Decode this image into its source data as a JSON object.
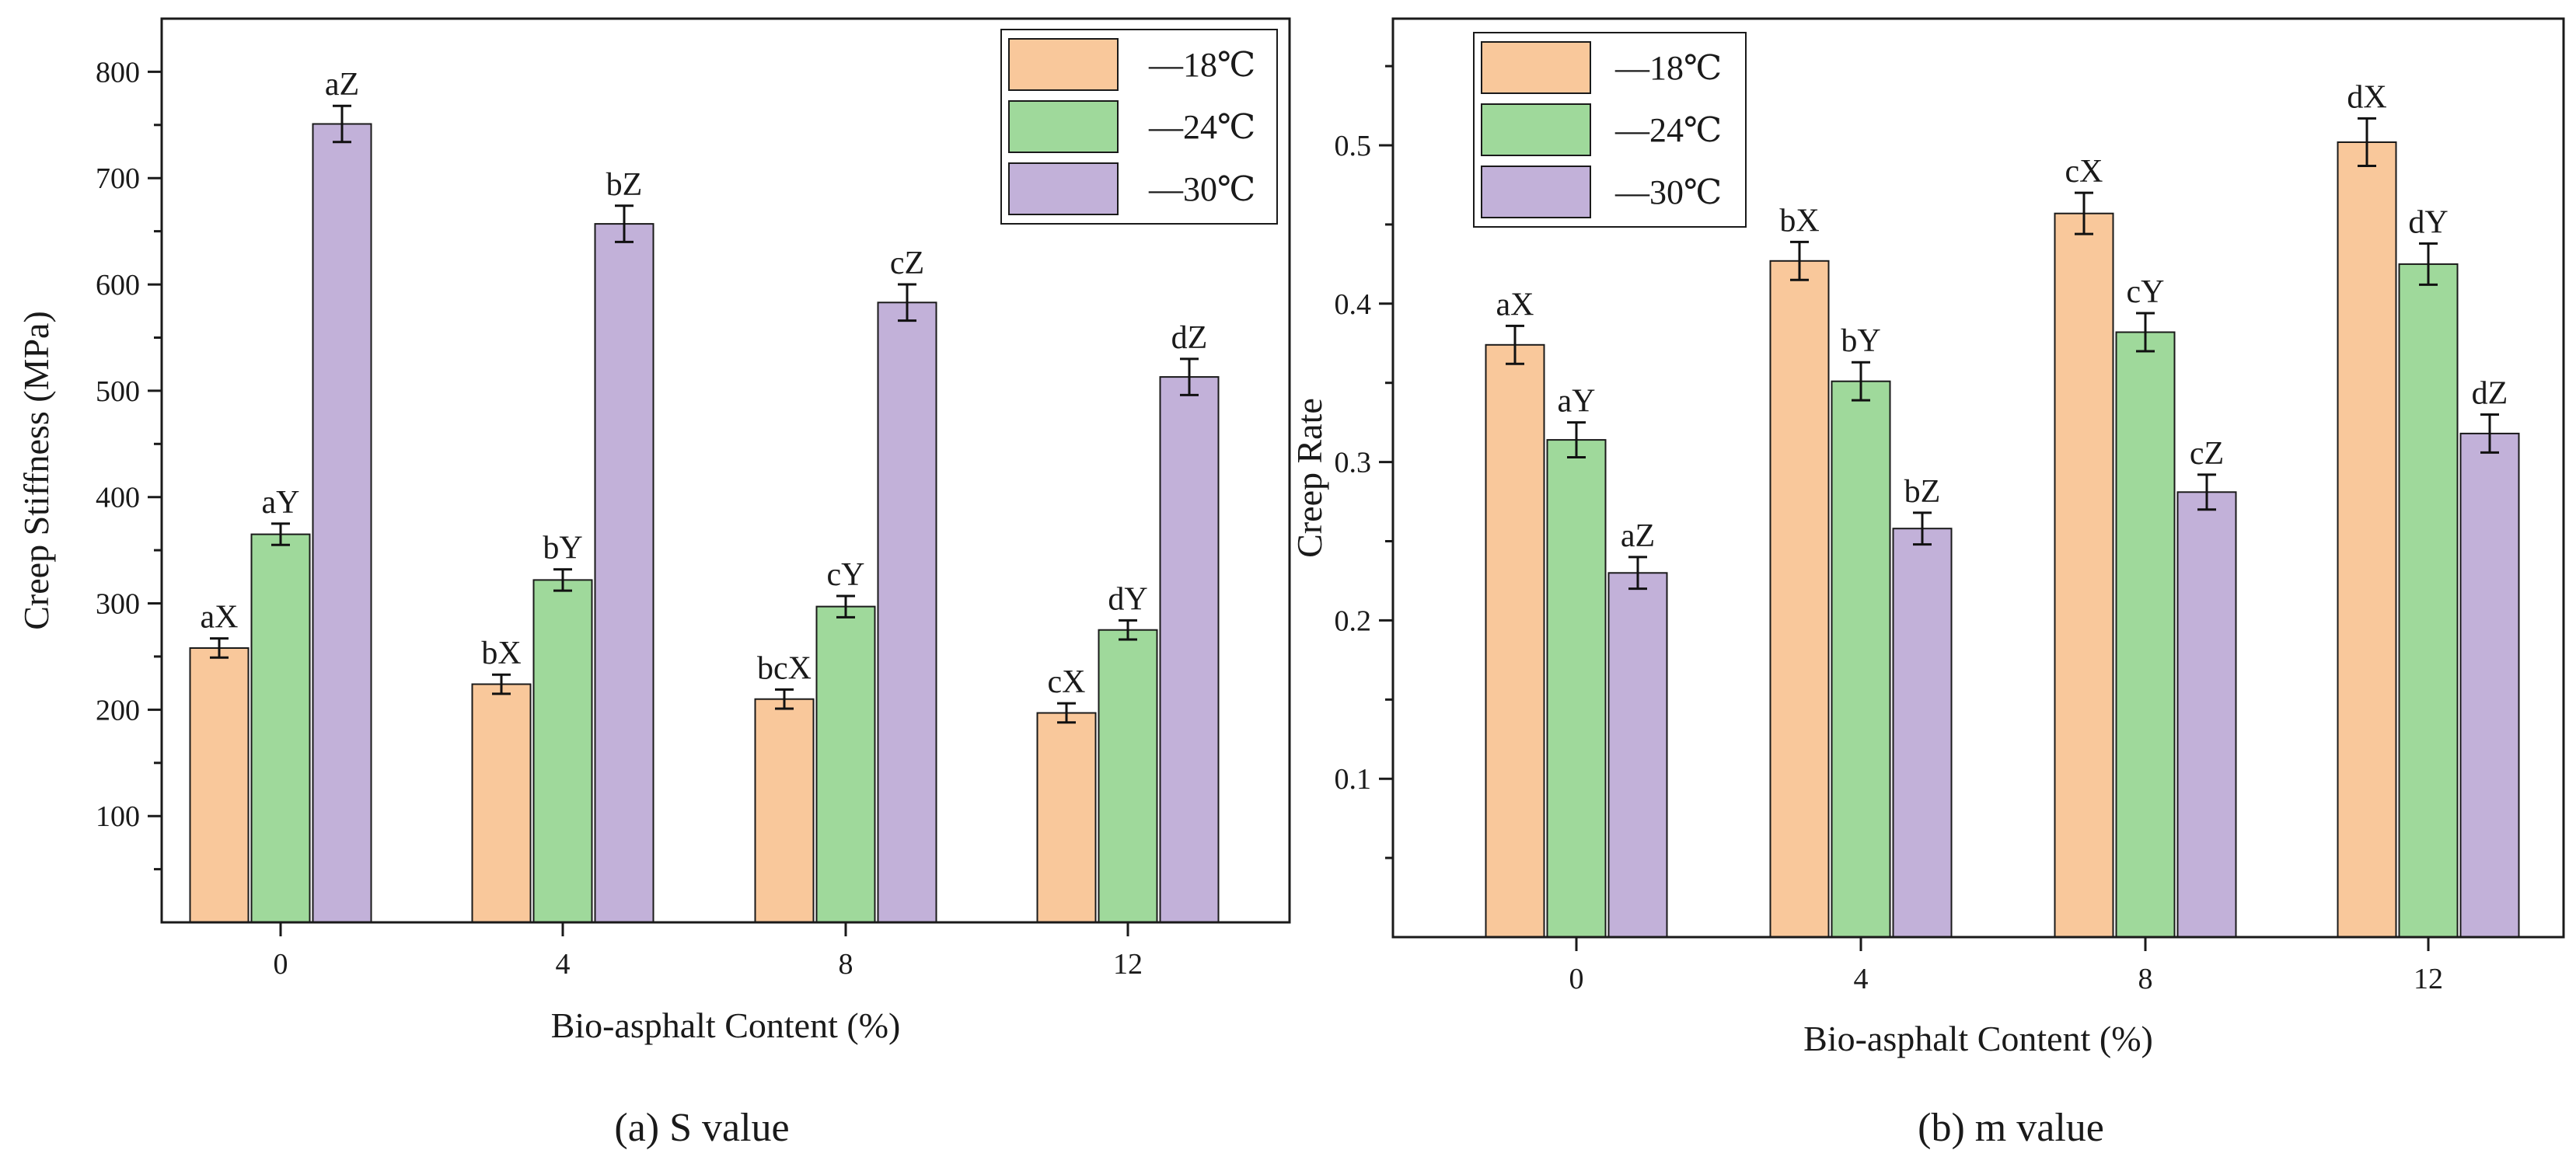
{
  "chart_data": [
    {
      "type": "bar",
      "caption": "(a)  S value",
      "xlabel": "Bio-asphalt Content (%)",
      "ylabel": "Creep Stiffness (MPa)",
      "categories": [
        "0",
        "4",
        "8",
        "12"
      ],
      "ylim": [
        0,
        850
      ],
      "yticks": [
        100,
        200,
        300,
        400,
        500,
        600,
        700,
        800
      ],
      "ytick_labels": [
        "100",
        "200",
        "300",
        "400",
        "500",
        "600",
        "700",
        "800"
      ],
      "legend_position": "top-right",
      "series": [
        {
          "name": "—18℃",
          "color": "#f9c89b",
          "values": [
            258,
            224,
            210,
            197
          ],
          "errors": [
            9,
            9,
            9,
            9
          ],
          "labels": [
            "aX",
            "bX",
            "bcX",
            "cX"
          ]
        },
        {
          "name": "—24℃",
          "color": "#9fd99b",
          "values": [
            365,
            322,
            297,
            275
          ],
          "errors": [
            10,
            10,
            10,
            9
          ],
          "labels": [
            "aY",
            "bY",
            "cY",
            "dY"
          ]
        },
        {
          "name": "—30℃",
          "color": "#c2b1d9",
          "values": [
            751,
            657,
            583,
            513
          ],
          "errors": [
            17,
            17,
            17,
            17
          ],
          "labels": [
            "aZ",
            "bZ",
            "cZ",
            "dZ"
          ]
        }
      ]
    },
    {
      "type": "bar",
      "caption": "(b)  m value",
      "xlabel": "Bio-asphalt Content (%)",
      "ylabel": "Creep Rate",
      "categories": [
        "0",
        "4",
        "8",
        "12"
      ],
      "ylim": [
        0,
        0.58
      ],
      "yticks": [
        0.1,
        0.2,
        0.3,
        0.4,
        0.5
      ],
      "ytick_labels": [
        "0.1",
        "0.2",
        "0.3",
        "0.4",
        "0.5"
      ],
      "legend_position": "top-left",
      "series": [
        {
          "name": "—18℃",
          "color": "#f9c89b",
          "values": [
            0.374,
            0.427,
            0.457,
            0.502
          ],
          "errors": [
            0.012,
            0.012,
            0.013,
            0.015
          ],
          "labels": [
            "aX",
            "bX",
            "cX",
            "dX"
          ]
        },
        {
          "name": "—24℃",
          "color": "#9fd99b",
          "values": [
            0.314,
            0.351,
            0.382,
            0.425
          ],
          "errors": [
            0.011,
            0.012,
            0.012,
            0.013
          ],
          "labels": [
            "aY",
            "bY",
            "cY",
            "dY"
          ]
        },
        {
          "name": "—30℃",
          "color": "#c2b1d9",
          "values": [
            0.23,
            0.258,
            0.281,
            0.318
          ],
          "errors": [
            0.01,
            0.01,
            0.011,
            0.012
          ],
          "labels": [
            "aZ",
            "bZ",
            "cZ",
            "dZ"
          ]
        }
      ]
    }
  ]
}
